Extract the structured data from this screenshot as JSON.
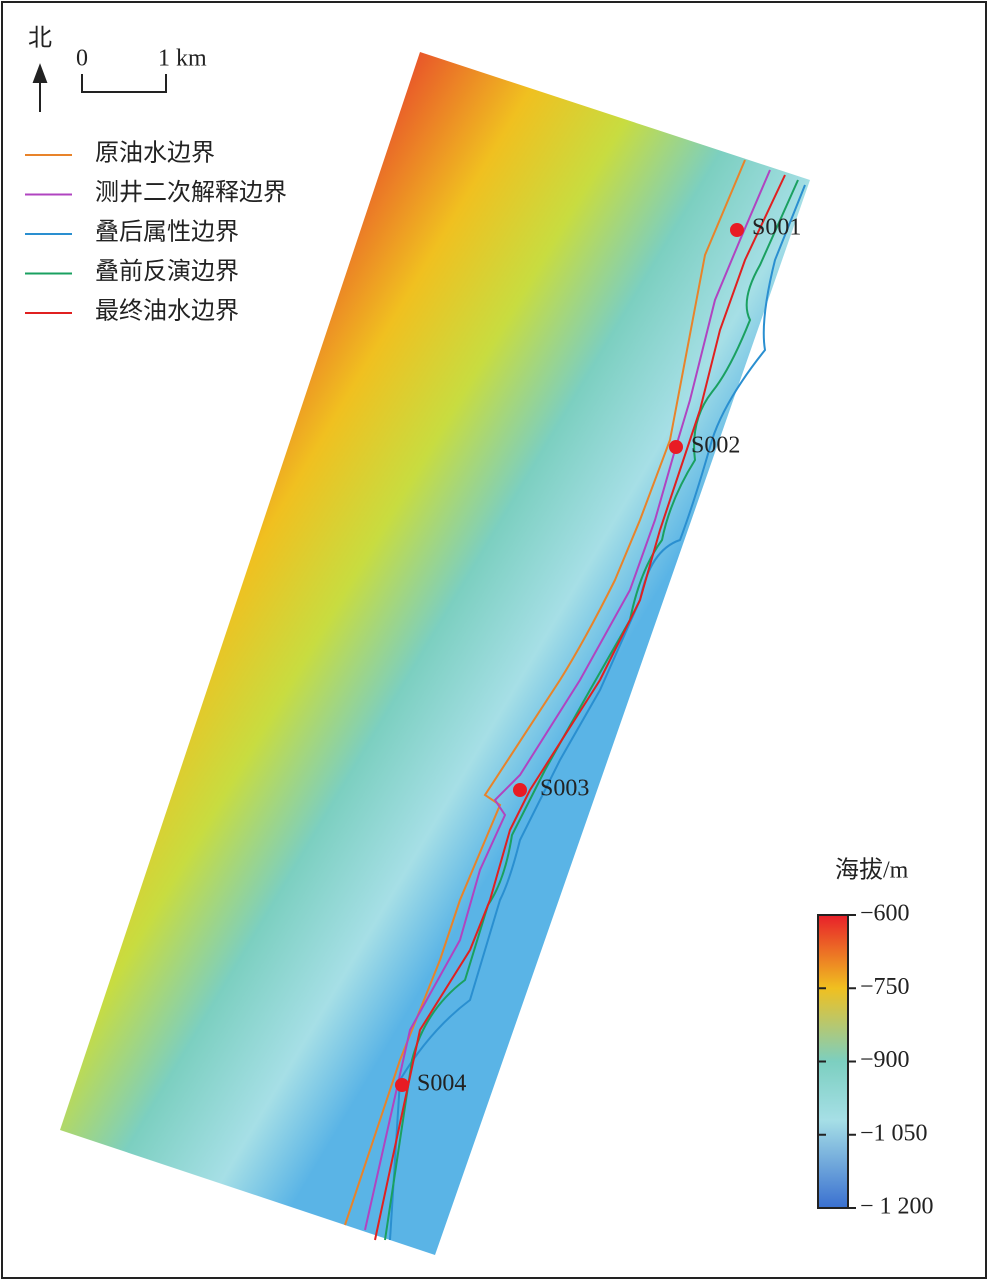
{
  "north": "北",
  "scale_bar": {
    "start": "0",
    "end": "1 km"
  },
  "legend": [
    {
      "label": "原油水边界",
      "color": "#e8832a"
    },
    {
      "label": "测井二次解释边界",
      "color": "#b044c0"
    },
    {
      "label": "叠后属性边界",
      "color": "#2a8fd0"
    },
    {
      "label": "叠前反演边界",
      "color": "#1aa060"
    },
    {
      "label": "最终油水边界",
      "color": "#e02020"
    }
  ],
  "wells": [
    "S001",
    "S002",
    "S003",
    "S004"
  ],
  "colorbar": {
    "title": "海拔/m",
    "lim": [
      -1200,
      -600
    ],
    "ticks": [
      {
        "value": -600,
        "label": "−600"
      },
      {
        "value": -750,
        "label": "−750"
      },
      {
        "value": -900,
        "label": "−900"
      },
      {
        "value": -1050,
        "label": "−1 050"
      },
      {
        "value": -1200,
        "label": "− 1 200"
      }
    ]
  }
}
